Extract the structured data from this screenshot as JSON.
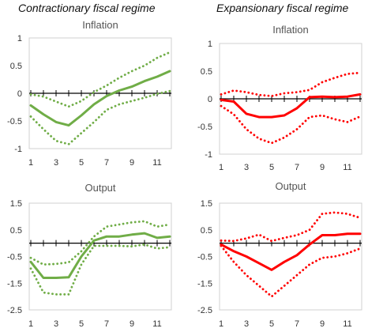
{
  "regimes": {
    "left_title": "Contractionary fiscal regime",
    "right_title": "Expansionary fiscal regime"
  },
  "colors": {
    "contractionary": "#70ad47",
    "expansionary": "#ff0000"
  },
  "chart_data": [
    {
      "type": "line",
      "title": "Inflation",
      "regime": "Contractionary fiscal regime",
      "color": "#70ad47",
      "x": [
        1,
        2,
        3,
        4,
        5,
        6,
        7,
        8,
        9,
        10,
        11,
        12
      ],
      "xticks": [
        1,
        3,
        5,
        7,
        9,
        11
      ],
      "ylim": [
        -1,
        1
      ],
      "yticks": [
        1,
        0.5,
        0,
        -0.5,
        -1
      ],
      "ytick_labels": [
        "1",
        "0.5",
        "0",
        "-0.5",
        "-1"
      ],
      "series": [
        {
          "style": "solid",
          "values": [
            -0.22,
            -0.38,
            -0.52,
            -0.58,
            -0.4,
            -0.2,
            -0.05,
            0.05,
            0.12,
            0.22,
            0.3,
            0.4
          ]
        },
        {
          "style": "dotted",
          "values": [
            -0.02,
            -0.06,
            -0.15,
            -0.24,
            -0.14,
            0.02,
            0.14,
            0.28,
            0.4,
            0.5,
            0.64,
            0.74
          ]
        },
        {
          "style": "dotted",
          "values": [
            -0.42,
            -0.65,
            -0.86,
            -0.92,
            -0.72,
            -0.52,
            -0.3,
            -0.2,
            -0.14,
            -0.08,
            -0.01,
            0.04
          ]
        }
      ]
    },
    {
      "type": "line",
      "title": "Inflation",
      "regime": "Expansionary fiscal regime",
      "color": "#ff0000",
      "x": [
        1,
        2,
        3,
        4,
        5,
        6,
        7,
        8,
        9,
        10,
        11,
        12
      ],
      "xticks": [
        1,
        3,
        5,
        7,
        9,
        11
      ],
      "ylim": [
        -1,
        1
      ],
      "yticks": [
        1,
        0.5,
        0,
        -0.5,
        -1
      ],
      "ytick_labels": [
        "1",
        "0.5",
        "0",
        "-0.5",
        "-1"
      ],
      "series": [
        {
          "style": "solid",
          "values": [
            -0.02,
            -0.05,
            -0.27,
            -0.33,
            -0.33,
            -0.3,
            -0.17,
            0.03,
            0.04,
            0.03,
            0.04,
            0.08
          ]
        },
        {
          "style": "dotted",
          "values": [
            0.08,
            0.15,
            0.12,
            0.07,
            0.05,
            0.1,
            0.12,
            0.16,
            0.3,
            0.38,
            0.45,
            0.47
          ]
        },
        {
          "style": "dotted",
          "values": [
            -0.13,
            -0.28,
            -0.55,
            -0.72,
            -0.8,
            -0.7,
            -0.55,
            -0.33,
            -0.3,
            -0.37,
            -0.42,
            -0.32
          ]
        }
      ]
    },
    {
      "type": "line",
      "title": "Output",
      "regime": "Contractionary fiscal regime",
      "color": "#70ad47",
      "x": [
        1,
        2,
        3,
        4,
        5,
        6,
        7,
        8,
        9,
        10,
        11,
        12
      ],
      "xticks": [
        1,
        3,
        5,
        7,
        9,
        11
      ],
      "ylim": [
        -2.5,
        1.5
      ],
      "yticks": [
        1.5,
        0.5,
        -0.5,
        -1.5,
        -2.5
      ],
      "ytick_labels": [
        "1.5",
        "0.5",
        "-0.5",
        "-1.5",
        "-2.5"
      ],
      "series": [
        {
          "style": "solid",
          "values": [
            -0.7,
            -1.3,
            -1.3,
            -1.28,
            -0.5,
            0.1,
            0.25,
            0.25,
            0.32,
            0.37,
            0.2,
            0.25
          ]
        },
        {
          "style": "dotted",
          "values": [
            -0.55,
            -0.8,
            -0.78,
            -0.72,
            -0.3,
            0.25,
            0.62,
            0.7,
            0.78,
            0.82,
            0.62,
            0.7
          ]
        },
        {
          "style": "dotted",
          "values": [
            -0.95,
            -1.85,
            -1.92,
            -1.92,
            -0.8,
            -0.1,
            -0.1,
            -0.1,
            -0.12,
            -0.05,
            -0.2,
            -0.15
          ]
        }
      ]
    },
    {
      "type": "line",
      "title": "Output",
      "regime": "Expansionary fiscal regime",
      "color": "#ff0000",
      "x": [
        1,
        2,
        3,
        4,
        5,
        6,
        7,
        8,
        9,
        10,
        11,
        12
      ],
      "xticks": [
        1,
        3,
        5,
        7,
        9,
        11
      ],
      "ylim": [
        -2.5,
        1.5
      ],
      "yticks": [
        1.5,
        0.5,
        -0.5,
        -1.5,
        -2.5
      ],
      "ytick_labels": [
        "1.5",
        "0.5",
        "-0.5",
        "-1.5",
        "-2.5"
      ],
      "series": [
        {
          "style": "solid",
          "values": [
            -0.05,
            -0.3,
            -0.5,
            -0.75,
            -1.0,
            -0.7,
            -0.45,
            -0.05,
            0.3,
            0.3,
            0.35,
            0.35
          ]
        },
        {
          "style": "dotted",
          "values": [
            0.1,
            0.08,
            0.18,
            0.32,
            0.08,
            0.2,
            0.3,
            0.5,
            1.1,
            1.15,
            1.1,
            0.95
          ]
        },
        {
          "style": "dotted",
          "values": [
            -0.1,
            -0.7,
            -1.2,
            -1.6,
            -2.0,
            -1.6,
            -1.2,
            -0.8,
            -0.55,
            -0.5,
            -0.38,
            -0.2
          ]
        }
      ]
    }
  ]
}
